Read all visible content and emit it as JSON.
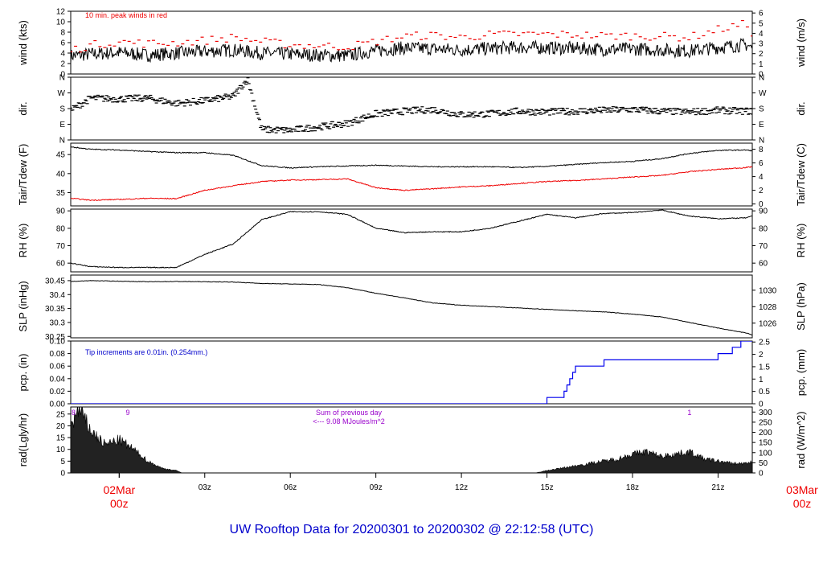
{
  "footer": {
    "title": "UW Rooftop Data for 20200301  to  20200302 @ 22:12:58  (UTC)"
  },
  "x_axis": {
    "start_label": [
      "02Mar",
      "00z"
    ],
    "end_label": [
      "03Mar",
      "00z"
    ],
    "ticks": [
      "03z",
      "06z",
      "09z",
      "12z",
      "15z",
      "18z",
      "21z"
    ],
    "tick_hours": [
      3,
      6,
      9,
      12,
      15,
      18,
      21
    ],
    "domain_hours": [
      -1.7,
      22.2
    ]
  },
  "colors": {
    "obs": "#000000",
    "dew": "#ee0000",
    "precip": "#0000ee",
    "note_red": "#ee0000",
    "note_blue": "#0000cc",
    "note_purple": "#9900cc",
    "day_label": "#ee0000"
  },
  "chart_data": [
    {
      "type": "line",
      "id": "wind",
      "ylabel": "wind (kts)",
      "ylabel_right": "wind (m/s)",
      "ylim": [
        0,
        12
      ],
      "yticks": [
        0,
        2,
        4,
        6,
        8,
        10,
        12
      ],
      "ylim_right": [
        0,
        6.17
      ],
      "yticks_right": [
        0,
        1,
        2,
        3,
        4,
        5,
        6
      ],
      "annotation": "10 min. peak winds in red",
      "series": [
        {
          "x": [
            -1.7,
            -1,
            0,
            1,
            2,
            3,
            4,
            5,
            6,
            7,
            8,
            9,
            10,
            11,
            12,
            13,
            14,
            15,
            16,
            17,
            18,
            19,
            20,
            21,
            22,
            22.2
          ],
          "y": [
            3.5,
            3.8,
            4.1,
            3.6,
            4.0,
            4.3,
            4.6,
            4.0,
            3.8,
            3.6,
            3.5,
            4.5,
            5.0,
            4.8,
            4.6,
            4.9,
            5.1,
            5.0,
            4.9,
            4.7,
            4.8,
            4.6,
            4.4,
            5.1,
            5.6,
            5.0
          ]
        },
        {
          "x": [
            -1.7,
            -1,
            0,
            1,
            2,
            3,
            4,
            5,
            6,
            7,
            8,
            9,
            10,
            11,
            12,
            13,
            14,
            15,
            16,
            17,
            18,
            19,
            20,
            21,
            22,
            22.2
          ],
          "y": [
            4.5,
            5.5,
            6.2,
            5.8,
            6.0,
            6.4,
            7.0,
            6.2,
            5.6,
            5.4,
            5.2,
            6.2,
            7.2,
            7.4,
            7.0,
            7.5,
            7.6,
            7.6,
            7.5,
            7.3,
            7.3,
            7.2,
            7.0,
            8.5,
            9.6,
            8.0
          ]
        }
      ]
    },
    {
      "type": "scatter",
      "id": "dir",
      "ylabel": "dir.",
      "ylabel_right": "dir.",
      "ylim": [
        0,
        360
      ],
      "yticks": [
        0,
        90,
        180,
        270,
        360
      ],
      "ytick_labels": [
        "N",
        "E",
        "S",
        "W",
        "N"
      ],
      "series": [
        {
          "x": [
            -1.7,
            -1,
            0,
            1,
            2,
            3,
            4,
            4.5,
            5,
            6,
            7,
            8,
            9,
            10,
            11,
            12,
            13,
            14,
            15,
            16,
            17,
            18,
            19,
            20,
            21,
            22,
            22.2
          ],
          "y": [
            170,
            240,
            235,
            240,
            210,
            225,
            250,
            350,
            60,
            55,
            75,
            95,
            150,
            165,
            175,
            145,
            150,
            165,
            160,
            165,
            170,
            175,
            165,
            160,
            170,
            165,
            165
          ]
        }
      ]
    },
    {
      "type": "line",
      "id": "temp",
      "ylabel": "Tair/Tdew (F)",
      "ylabel_right": "Tair/Tdew (C)",
      "ylim": [
        31.5,
        48
      ],
      "yticks": [
        35,
        40,
        45
      ],
      "ylim_right": [
        -0.28,
        8.89
      ],
      "yticks_right": [
        0,
        2,
        4,
        6,
        8
      ],
      "series": [
        {
          "x": [
            -1.7,
            -1,
            0,
            1,
            2,
            3,
            4,
            5,
            6,
            7,
            8,
            9,
            10,
            11,
            12,
            13,
            14,
            15,
            16,
            17,
            18,
            19,
            20,
            21,
            22,
            22.2
          ],
          "y": [
            47.0,
            46.4,
            46.2,
            45.8,
            45.5,
            45.5,
            44.8,
            42.1,
            41.5,
            41.8,
            42.0,
            42.2,
            42.0,
            41.8,
            41.8,
            41.8,
            41.6,
            41.9,
            42.4,
            42.9,
            43.2,
            43.9,
            45.3,
            46.1,
            46.2,
            46.0
          ]
        },
        {
          "x": [
            -1.7,
            -1,
            0,
            1,
            2,
            3,
            4,
            5,
            6,
            7,
            8,
            9,
            10,
            11,
            12,
            13,
            14,
            15,
            16,
            17,
            18,
            19,
            20,
            21,
            22,
            22.2
          ],
          "y": [
            33.5,
            33.0,
            33.2,
            33.5,
            33.4,
            35.6,
            36.8,
            37.9,
            38.3,
            38.4,
            38.6,
            36.3,
            35.6,
            36.0,
            36.5,
            36.8,
            37.4,
            37.9,
            38.2,
            38.6,
            39.1,
            39.5,
            40.5,
            41.1,
            41.6,
            41.8
          ]
        }
      ]
    },
    {
      "type": "line",
      "id": "rh",
      "ylabel": "RH (%)",
      "ylabel_right": "RH (%)",
      "ylim": [
        55,
        91
      ],
      "yticks": [
        60,
        70,
        80,
        90
      ],
      "series": [
        {
          "x": [
            -1.7,
            -1,
            0,
            1,
            2,
            3,
            4,
            5,
            6,
            7,
            8,
            9,
            10,
            11,
            12,
            13,
            14,
            15,
            16,
            17,
            18,
            19,
            20,
            21,
            22,
            22.2
          ],
          "y": [
            60,
            58,
            57.5,
            57.5,
            57.5,
            65,
            71,
            85,
            89.5,
            89.5,
            88,
            80,
            77.5,
            78,
            78,
            80,
            84,
            88,
            86,
            88.5,
            89,
            90.5,
            87,
            85.5,
            86,
            87
          ]
        }
      ]
    },
    {
      "type": "line",
      "id": "slp",
      "ylabel": "SLP (inHg)",
      "ylabel_right": "SLP (hPa)",
      "ylim": [
        30.245,
        30.47
      ],
      "yticks": [
        30.25,
        30.3,
        30.35,
        30.4,
        30.45
      ],
      "ylim_right": [
        1024.22,
        1031.84
      ],
      "yticks_right": [
        1026,
        1028,
        1030
      ],
      "series": [
        {
          "x": [
            -1.7,
            -1,
            0,
            1,
            2,
            3,
            4,
            5,
            6,
            7,
            8,
            9,
            10,
            11,
            12,
            13,
            14,
            15,
            16,
            17,
            18,
            19,
            20,
            21,
            22,
            22.2
          ],
          "y": [
            30.447,
            30.45,
            30.448,
            30.446,
            30.447,
            30.446,
            30.445,
            30.44,
            30.438,
            30.436,
            30.425,
            30.405,
            30.388,
            30.37,
            30.362,
            30.357,
            30.352,
            30.347,
            30.342,
            30.338,
            30.33,
            30.32,
            30.3,
            30.28,
            30.262,
            30.255
          ]
        }
      ]
    },
    {
      "type": "line",
      "id": "pcp",
      "ylabel": "pcp. (in)",
      "ylabel_right": "pcp. (mm)",
      "ylim": [
        0,
        0.1
      ],
      "yticks": [
        0,
        0.02,
        0.04,
        0.06,
        0.08,
        0.1
      ],
      "ytick_labels": [
        "0.00",
        "0.02",
        "0.04",
        "0.06",
        "0.08",
        "0.10"
      ],
      "ylim_right": [
        0,
        2.54
      ],
      "yticks_right": [
        0,
        0.5,
        1,
        1.5,
        2,
        2.5
      ],
      "annotation": "Tip increments are 0.01in. (0.254mm.)",
      "series": [
        {
          "x": [
            -1.7,
            15.0,
            15.6,
            15.7,
            15.8,
            15.9,
            16.0,
            16.5,
            17.0,
            17.9,
            21.0,
            21.5,
            21.8,
            22.2
          ],
          "y": [
            0,
            0.01,
            0.02,
            0.03,
            0.04,
            0.05,
            0.06,
            0.06,
            0.07,
            0.07,
            0.08,
            0.09,
            0.1,
            0.1
          ]
        }
      ]
    },
    {
      "type": "area",
      "id": "rad",
      "ylabel": "rad(Lgly/hr)",
      "ylabel_right": "rad (W/m^2)",
      "ylim": [
        0,
        28
      ],
      "yticks": [
        0,
        5,
        10,
        15,
        20,
        25
      ],
      "ylim_right": [
        0,
        325
      ],
      "yticks_right": [
        0,
        50,
        100,
        150,
        200,
        250,
        300
      ],
      "annotation": [
        "Sum of previous day",
        "<--- 9.08 MJoules/m^2"
      ],
      "markers": [
        {
          "x": -1.6,
          "label": "8"
        },
        {
          "x": 0.3,
          "label": "9"
        },
        {
          "x": 20.0,
          "label": "1"
        }
      ],
      "series": [
        {
          "x": [
            -1.7,
            -1.4,
            -1.0,
            -0.5,
            0,
            0.5,
            1.0,
            1.5,
            2.0,
            2.2,
            14.6,
            15.0,
            16.0,
            17.0,
            17.5,
            18.0,
            18.5,
            19.0,
            19.5,
            20.0,
            20.5,
            21.0,
            21.5,
            22.0,
            22.2
          ],
          "y": [
            20,
            27,
            18,
            12,
            14,
            10,
            5,
            2,
            1,
            0,
            0,
            1,
            3,
            5,
            6,
            8,
            9,
            7,
            8,
            9,
            6,
            5,
            4,
            4,
            5
          ]
        }
      ]
    }
  ]
}
